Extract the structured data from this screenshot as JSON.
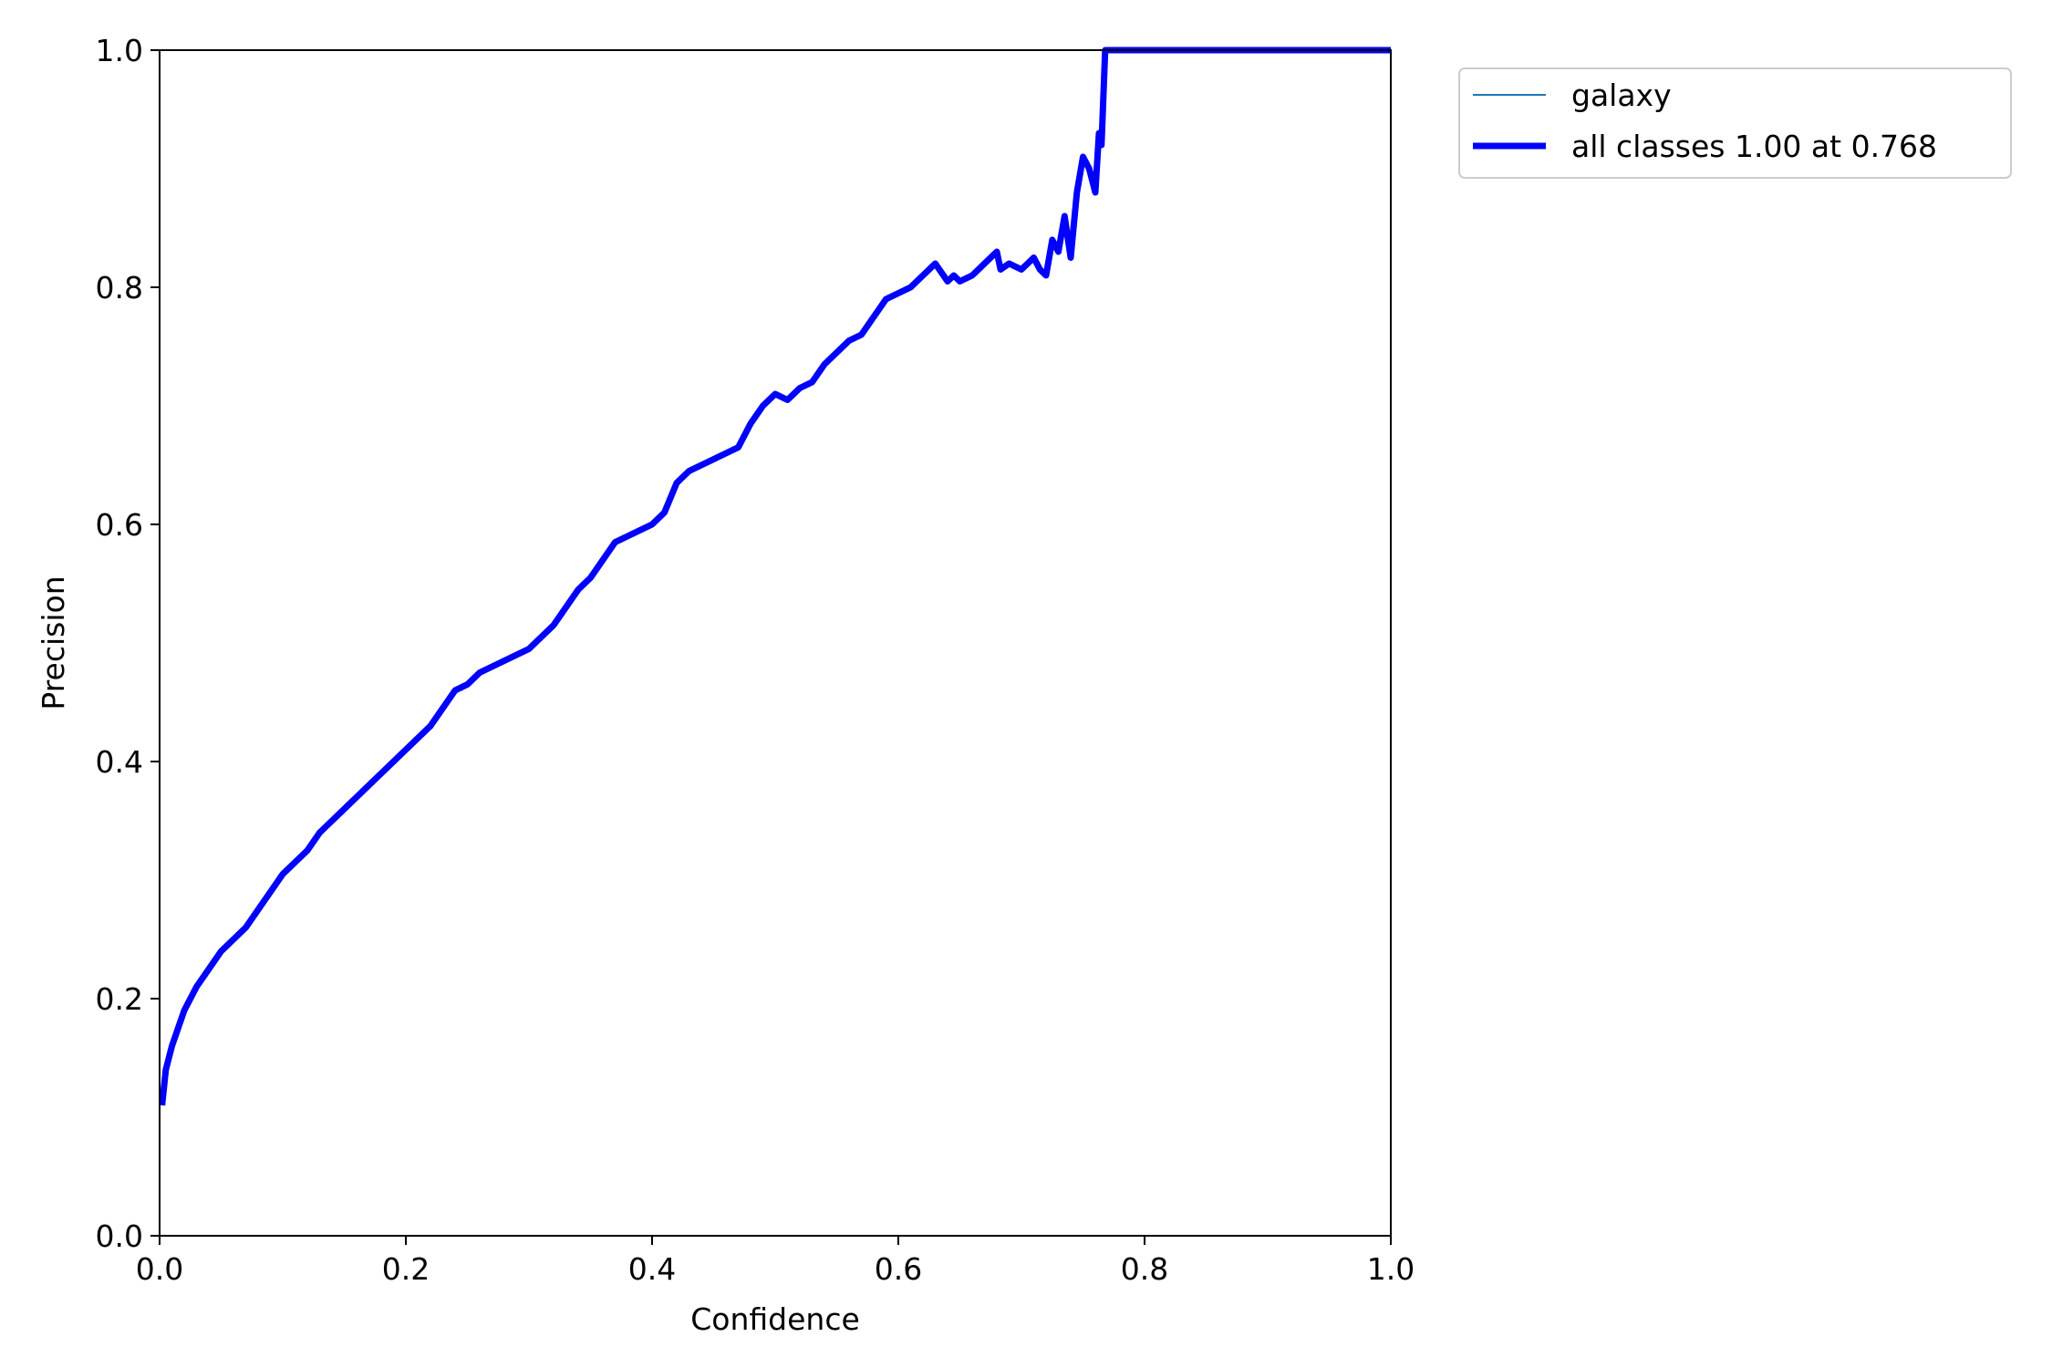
{
  "chart_data": {
    "type": "line",
    "title": "",
    "xlabel": "Confidence",
    "ylabel": "Precision",
    "xlim": [
      0.0,
      1.0
    ],
    "ylim": [
      0.0,
      1.0
    ],
    "xticks": [
      "0.0",
      "0.2",
      "0.4",
      "0.6",
      "0.8",
      "1.0"
    ],
    "yticks": [
      "0.0",
      "0.2",
      "0.4",
      "0.6",
      "0.8",
      "1.0"
    ],
    "grid": false,
    "legend_position": "outside top-right",
    "series": [
      {
        "name": "galaxy",
        "color": "#1f77b4",
        "style": "thin",
        "x": [
          0.002,
          0.005,
          0.01,
          0.02,
          0.03,
          0.04,
          0.05,
          0.06,
          0.07,
          0.08,
          0.09,
          0.1,
          0.11,
          0.12,
          0.13,
          0.14,
          0.15,
          0.16,
          0.17,
          0.18,
          0.19,
          0.2,
          0.21,
          0.22,
          0.23,
          0.24,
          0.25,
          0.26,
          0.27,
          0.28,
          0.29,
          0.3,
          0.31,
          0.32,
          0.33,
          0.34,
          0.35,
          0.36,
          0.37,
          0.38,
          0.39,
          0.4,
          0.41,
          0.42,
          0.43,
          0.44,
          0.45,
          0.46,
          0.47,
          0.48,
          0.49,
          0.5,
          0.51,
          0.52,
          0.53,
          0.54,
          0.55,
          0.56,
          0.57,
          0.58,
          0.59,
          0.6,
          0.61,
          0.62,
          0.63,
          0.64,
          0.645,
          0.65,
          0.66,
          0.665,
          0.67,
          0.68,
          0.683,
          0.69,
          0.7,
          0.705,
          0.71,
          0.715,
          0.72,
          0.725,
          0.73,
          0.735,
          0.74,
          0.745,
          0.75,
          0.755,
          0.76,
          0.763,
          0.765,
          0.768,
          0.8,
          0.9,
          1.0
        ],
        "y": [
          0.11,
          0.14,
          0.16,
          0.19,
          0.21,
          0.225,
          0.24,
          0.25,
          0.26,
          0.275,
          0.29,
          0.305,
          0.315,
          0.325,
          0.34,
          0.35,
          0.36,
          0.37,
          0.38,
          0.39,
          0.4,
          0.41,
          0.42,
          0.43,
          0.445,
          0.46,
          0.465,
          0.475,
          0.48,
          0.485,
          0.49,
          0.495,
          0.505,
          0.515,
          0.53,
          0.545,
          0.555,
          0.57,
          0.585,
          0.59,
          0.595,
          0.6,
          0.61,
          0.635,
          0.645,
          0.65,
          0.655,
          0.66,
          0.665,
          0.685,
          0.7,
          0.71,
          0.705,
          0.715,
          0.72,
          0.735,
          0.745,
          0.755,
          0.76,
          0.775,
          0.79,
          0.795,
          0.8,
          0.81,
          0.82,
          0.805,
          0.81,
          0.805,
          0.81,
          0.815,
          0.82,
          0.83,
          0.815,
          0.82,
          0.815,
          0.82,
          0.825,
          0.815,
          0.81,
          0.84,
          0.83,
          0.86,
          0.825,
          0.88,
          0.91,
          0.9,
          0.88,
          0.93,
          0.92,
          1.0,
          1.0,
          1.0,
          1.0
        ]
      },
      {
        "name": "all classes 1.00 at 0.768",
        "color": "#0000ff",
        "style": "thick",
        "x": [
          0.002,
          0.005,
          0.01,
          0.02,
          0.03,
          0.04,
          0.05,
          0.06,
          0.07,
          0.08,
          0.09,
          0.1,
          0.11,
          0.12,
          0.13,
          0.14,
          0.15,
          0.16,
          0.17,
          0.18,
          0.19,
          0.2,
          0.21,
          0.22,
          0.23,
          0.24,
          0.25,
          0.26,
          0.27,
          0.28,
          0.29,
          0.3,
          0.31,
          0.32,
          0.33,
          0.34,
          0.35,
          0.36,
          0.37,
          0.38,
          0.39,
          0.4,
          0.41,
          0.42,
          0.43,
          0.44,
          0.45,
          0.46,
          0.47,
          0.48,
          0.49,
          0.5,
          0.51,
          0.52,
          0.53,
          0.54,
          0.55,
          0.56,
          0.57,
          0.58,
          0.59,
          0.6,
          0.61,
          0.62,
          0.63,
          0.64,
          0.645,
          0.65,
          0.66,
          0.665,
          0.67,
          0.68,
          0.683,
          0.69,
          0.7,
          0.705,
          0.71,
          0.715,
          0.72,
          0.725,
          0.73,
          0.735,
          0.74,
          0.745,
          0.75,
          0.755,
          0.76,
          0.763,
          0.765,
          0.768,
          0.8,
          0.9,
          1.0
        ],
        "y": [
          0.11,
          0.14,
          0.16,
          0.19,
          0.21,
          0.225,
          0.24,
          0.25,
          0.26,
          0.275,
          0.29,
          0.305,
          0.315,
          0.325,
          0.34,
          0.35,
          0.36,
          0.37,
          0.38,
          0.39,
          0.4,
          0.41,
          0.42,
          0.43,
          0.445,
          0.46,
          0.465,
          0.475,
          0.48,
          0.485,
          0.49,
          0.495,
          0.505,
          0.515,
          0.53,
          0.545,
          0.555,
          0.57,
          0.585,
          0.59,
          0.595,
          0.6,
          0.61,
          0.635,
          0.645,
          0.65,
          0.655,
          0.66,
          0.665,
          0.685,
          0.7,
          0.71,
          0.705,
          0.715,
          0.72,
          0.735,
          0.745,
          0.755,
          0.76,
          0.775,
          0.79,
          0.795,
          0.8,
          0.81,
          0.82,
          0.805,
          0.81,
          0.805,
          0.81,
          0.815,
          0.82,
          0.83,
          0.815,
          0.82,
          0.815,
          0.82,
          0.825,
          0.815,
          0.81,
          0.84,
          0.83,
          0.86,
          0.825,
          0.88,
          0.91,
          0.9,
          0.88,
          0.93,
          0.92,
          1.0,
          1.0,
          1.0,
          1.0
        ]
      }
    ]
  }
}
